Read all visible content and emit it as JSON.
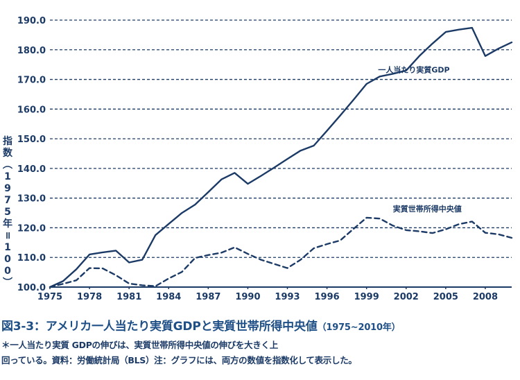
{
  "chart_data": {
    "type": "line",
    "ylabel": "指数（1975年＝100）",
    "ylim": [
      100,
      190
    ],
    "yticks": [
      "100.0",
      "110.0",
      "120.0",
      "130.0",
      "140.0",
      "150.0",
      "160.0",
      "170.0",
      "180.0",
      "190.0"
    ],
    "xlim": [
      1975,
      2010
    ],
    "xticks": [
      "1975",
      "1978",
      "1981",
      "1984",
      "1987",
      "1990",
      "1993",
      "1996",
      "1999",
      "2002",
      "2005",
      "2008"
    ],
    "grid": "horizontal-dashed",
    "series": [
      {
        "name": "一人当たり実質GDP",
        "style": "solid",
        "points": [
          [
            1975,
            100.0
          ],
          [
            1976,
            102.0
          ],
          [
            1977,
            106.0
          ],
          [
            1978,
            111.0
          ],
          [
            1979,
            111.7
          ],
          [
            1980,
            112.3
          ],
          [
            1981,
            108.3
          ],
          [
            1982,
            109.2
          ],
          [
            1983,
            117.5
          ],
          [
            1984,
            121.3
          ],
          [
            1985,
            125.0
          ],
          [
            1986,
            127.8
          ],
          [
            1987,
            132.0
          ],
          [
            1988,
            136.3
          ],
          [
            1989,
            138.5
          ],
          [
            1990,
            134.8
          ],
          [
            1991,
            137.5
          ],
          [
            1992,
            140.3
          ],
          [
            1993,
            143.2
          ],
          [
            1994,
            146.0
          ],
          [
            1995,
            147.7
          ],
          [
            1996,
            152.7
          ],
          [
            1997,
            157.8
          ],
          [
            1998,
            163.1
          ],
          [
            1999,
            168.5
          ],
          [
            2000,
            171.0
          ],
          [
            2001,
            171.9
          ],
          [
            2002,
            173.0
          ],
          [
            2003,
            177.9
          ],
          [
            2004,
            182.1
          ],
          [
            2005,
            186.0
          ],
          [
            2006,
            186.8
          ],
          [
            2007,
            187.4
          ],
          [
            2008,
            177.9
          ],
          [
            2009,
            180.4
          ],
          [
            2010,
            182.5
          ]
        ]
      },
      {
        "name": "実質世帯所得中央値",
        "style": "dashed",
        "points": [
          [
            1975,
            100.0
          ],
          [
            1976,
            101.1
          ],
          [
            1977,
            102.3
          ],
          [
            1978,
            106.4
          ],
          [
            1979,
            106.3
          ],
          [
            1980,
            104.0
          ],
          [
            1981,
            101.2
          ],
          [
            1982,
            100.6
          ],
          [
            1983,
            100.3
          ],
          [
            1984,
            102.9
          ],
          [
            1985,
            105.1
          ],
          [
            1986,
            109.8
          ],
          [
            1987,
            110.8
          ],
          [
            1988,
            111.6
          ],
          [
            1989,
            113.4
          ],
          [
            1990,
            111.2
          ],
          [
            1991,
            109.2
          ],
          [
            1992,
            107.8
          ],
          [
            1993,
            106.4
          ],
          [
            1994,
            109.2
          ],
          [
            1995,
            113.1
          ],
          [
            1996,
            114.5
          ],
          [
            1997,
            115.7
          ],
          [
            1998,
            119.6
          ],
          [
            1999,
            123.4
          ],
          [
            2000,
            123.1
          ],
          [
            2001,
            120.7
          ],
          [
            2002,
            119.2
          ],
          [
            2003,
            118.8
          ],
          [
            2004,
            118.2
          ],
          [
            2005,
            119.5
          ],
          [
            2006,
            121.2
          ],
          [
            2007,
            122.1
          ],
          [
            2008,
            118.3
          ],
          [
            2009,
            117.8
          ],
          [
            2010,
            116.6
          ]
        ]
      }
    ]
  },
  "caption": {
    "title": "図3-3：アメリカ一人当たり実質GDPと実質世帯所得中央値",
    "period": "（1975~2010年）",
    "note_line1": "＊一人当たり実質 GDPの伸びは、実質世帯所得中央値の伸びを大きく上",
    "note_line2": "回っている。資料：労働統計局（BLS）注：グラフには、両方の数値を指数化して表示した。"
  },
  "colors": {
    "line": "#1b3a66",
    "caption_title": "#1e4f86"
  }
}
